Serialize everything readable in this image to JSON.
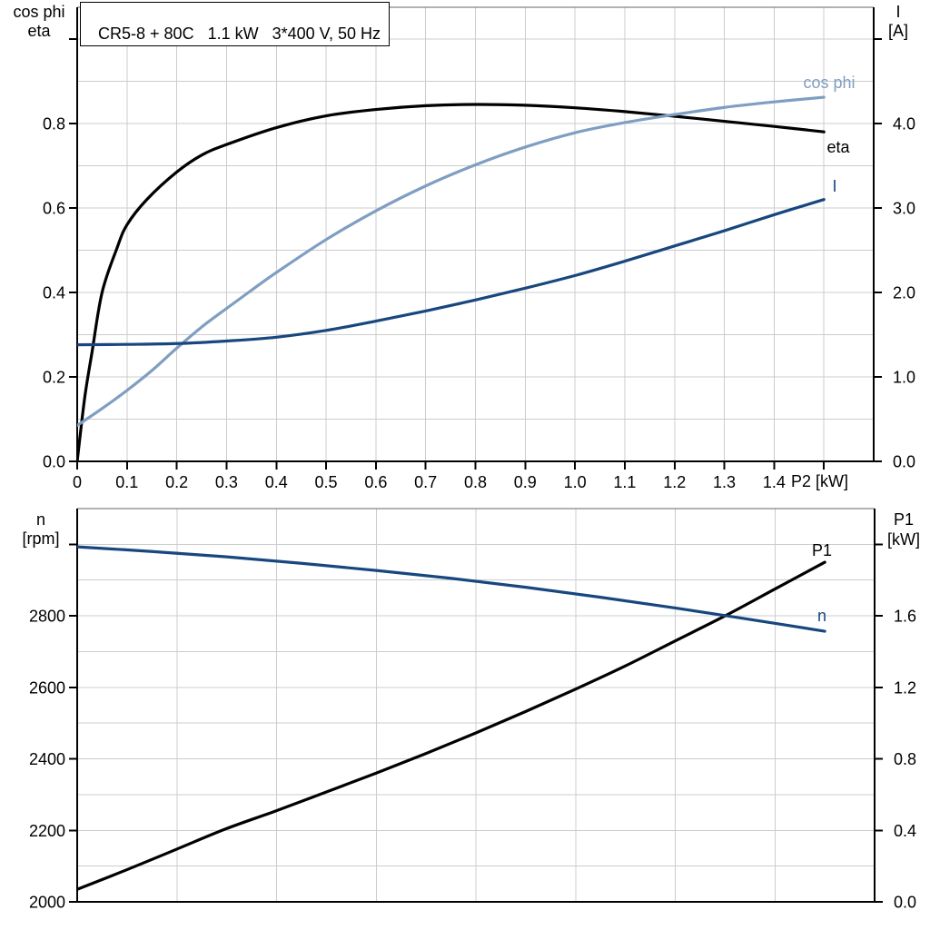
{
  "title_box": "CR5-8 + 80C   1.1 kW   3*400 V, 50 Hz",
  "colors": {
    "axis": "#000000",
    "frame": "#666666",
    "grid": "#cccccc",
    "black": "#000000",
    "dark_blue": "#17477e",
    "light_blue": "#7f9ec2"
  },
  "chart_data": [
    {
      "type": "line",
      "title": "CR5-8 + 80C   1.1 kW   3*400 V, 50 Hz",
      "x_axis": {
        "unit_label": "P2 [kW]",
        "range": [
          0,
          1.6
        ],
        "grid_step": 0.1,
        "tick_values": [
          0,
          0.1,
          0.2,
          0.3,
          0.4,
          0.5,
          0.6,
          0.7,
          0.8,
          0.9,
          1.0,
          1.1,
          1.2,
          1.3,
          1.4,
          1.5
        ],
        "tick_labels": [
          "0",
          "0.1",
          "0.2",
          "0.3",
          "0.4",
          "0.5",
          "0.6",
          "0.7",
          "0.8",
          "0.9",
          "1.0",
          "1.1",
          "1.2",
          "1.3",
          "1.4",
          ""
        ]
      },
      "left_axis": {
        "header_lines": [
          "cos phi",
          "eta"
        ],
        "range": [
          0,
          1.075
        ],
        "grid_step": 0.1,
        "tick_values": [
          0,
          0.2,
          0.4,
          0.6,
          0.8,
          1.0
        ],
        "tick_labels": [
          "0.0",
          "0.2",
          "0.4",
          "0.6",
          "0.8",
          ""
        ]
      },
      "right_axis": {
        "header_lines": [
          "I",
          "[A]"
        ],
        "range": [
          0,
          5.376
        ],
        "tick_values": [
          0,
          1,
          2,
          3,
          4,
          5
        ],
        "tick_labels": [
          "0.0",
          "1.0",
          "2.0",
          "3.0",
          "4.0",
          ""
        ]
      },
      "series": [
        {
          "name": "eta",
          "axis": "left",
          "color_key": "black",
          "label": "eta",
          "label_pos": [
            923,
            162
          ],
          "points": [
            [
              0,
              0
            ],
            [
              0.015,
              0.15
            ],
            [
              0.03,
              0.26
            ],
            [
              0.05,
              0.4
            ],
            [
              0.08,
              0.505
            ],
            [
              0.1,
              0.56
            ],
            [
              0.14,
              0.62
            ],
            [
              0.2,
              0.685
            ],
            [
              0.25,
              0.725
            ],
            [
              0.3,
              0.75
            ],
            [
              0.4,
              0.79
            ],
            [
              0.5,
              0.818
            ],
            [
              0.6,
              0.833
            ],
            [
              0.7,
              0.842
            ],
            [
              0.8,
              0.845
            ],
            [
              0.9,
              0.843
            ],
            [
              1.0,
              0.837
            ],
            [
              1.1,
              0.828
            ],
            [
              1.2,
              0.817
            ],
            [
              1.3,
              0.805
            ],
            [
              1.4,
              0.793
            ],
            [
              1.5,
              0.78
            ]
          ]
        },
        {
          "name": "cos_phi",
          "axis": "left",
          "color_key": "light_blue",
          "label": "cos phi",
          "label_pos": [
            913,
            91
          ],
          "points": [
            [
              0,
              0.085
            ],
            [
              0.05,
              0.125
            ],
            [
              0.1,
              0.168
            ],
            [
              0.15,
              0.215
            ],
            [
              0.2,
              0.268
            ],
            [
              0.25,
              0.318
            ],
            [
              0.3,
              0.362
            ],
            [
              0.35,
              0.405
            ],
            [
              0.4,
              0.447
            ],
            [
              0.5,
              0.525
            ],
            [
              0.6,
              0.593
            ],
            [
              0.7,
              0.652
            ],
            [
              0.8,
              0.702
            ],
            [
              0.9,
              0.744
            ],
            [
              1.0,
              0.778
            ],
            [
              1.1,
              0.802
            ],
            [
              1.2,
              0.821
            ],
            [
              1.3,
              0.838
            ],
            [
              1.4,
              0.851
            ],
            [
              1.5,
              0.862
            ]
          ]
        },
        {
          "name": "I",
          "axis": "right",
          "color_key": "dark_blue",
          "label": "I",
          "label_pos": [
            919,
            205
          ],
          "points": [
            [
              0,
              1.38
            ],
            [
              0.1,
              1.385
            ],
            [
              0.2,
              1.395
            ],
            [
              0.3,
              1.425
            ],
            [
              0.4,
              1.47
            ],
            [
              0.5,
              1.55
            ],
            [
              0.6,
              1.66
            ],
            [
              0.7,
              1.78
            ],
            [
              0.8,
              1.91
            ],
            [
              0.9,
              2.05
            ],
            [
              1.0,
              2.2
            ],
            [
              1.1,
              2.37
            ],
            [
              1.2,
              2.55
            ],
            [
              1.3,
              2.73
            ],
            [
              1.4,
              2.92
            ],
            [
              1.5,
              3.1
            ]
          ]
        }
      ]
    },
    {
      "type": "line",
      "title": "",
      "x_axis": {
        "unit_label": "",
        "range": [
          0,
          1.6
        ],
        "grid_step": 0.2,
        "tick_values": [],
        "tick_labels": []
      },
      "left_axis": {
        "header_lines": [
          "n",
          "[rpm]"
        ],
        "range": [
          2000,
          3100
        ],
        "grid_step": 100,
        "tick_values": [
          2000,
          2200,
          2400,
          2600,
          2800,
          3000
        ],
        "tick_labels": [
          "2000",
          "2200",
          "2400",
          "2600",
          "2800",
          ""
        ]
      },
      "right_axis": {
        "header_lines": [
          "P1",
          "[kW]"
        ],
        "range": [
          0,
          2.2
        ],
        "tick_values": [
          0,
          0.4,
          0.8,
          1.2,
          1.6,
          2.0
        ],
        "tick_labels": [
          "0.0",
          "0.4",
          "0.8",
          "1.2",
          "1.6",
          ""
        ]
      },
      "series": [
        {
          "name": "P1",
          "axis": "right",
          "color_key": "black",
          "label": "P1",
          "label_pos": [
            905,
            606
          ],
          "points": [
            [
              0,
              0.07
            ],
            [
              0.1,
              0.18
            ],
            [
              0.2,
              0.295
            ],
            [
              0.3,
              0.41
            ],
            [
              0.4,
              0.51
            ],
            [
              0.5,
              0.615
            ],
            [
              0.6,
              0.72
            ],
            [
              0.7,
              0.83
            ],
            [
              0.8,
              0.945
            ],
            [
              0.9,
              1.065
            ],
            [
              1.0,
              1.19
            ],
            [
              1.1,
              1.32
            ],
            [
              1.2,
              1.46
            ],
            [
              1.3,
              1.6
            ],
            [
              1.4,
              1.75
            ],
            [
              1.5,
              1.9
            ]
          ]
        },
        {
          "name": "n",
          "axis": "left",
          "color_key": "dark_blue",
          "label": "n",
          "label_pos": [
            905,
            678
          ],
          "points": [
            [
              0,
              2993
            ],
            [
              0.15,
              2980
            ],
            [
              0.3,
              2965
            ],
            [
              0.45,
              2947
            ],
            [
              0.6,
              2927
            ],
            [
              0.75,
              2905
            ],
            [
              0.9,
              2880
            ],
            [
              1.05,
              2852
            ],
            [
              1.2,
              2822
            ],
            [
              1.35,
              2790
            ],
            [
              1.5,
              2757
            ]
          ]
        }
      ]
    }
  ]
}
